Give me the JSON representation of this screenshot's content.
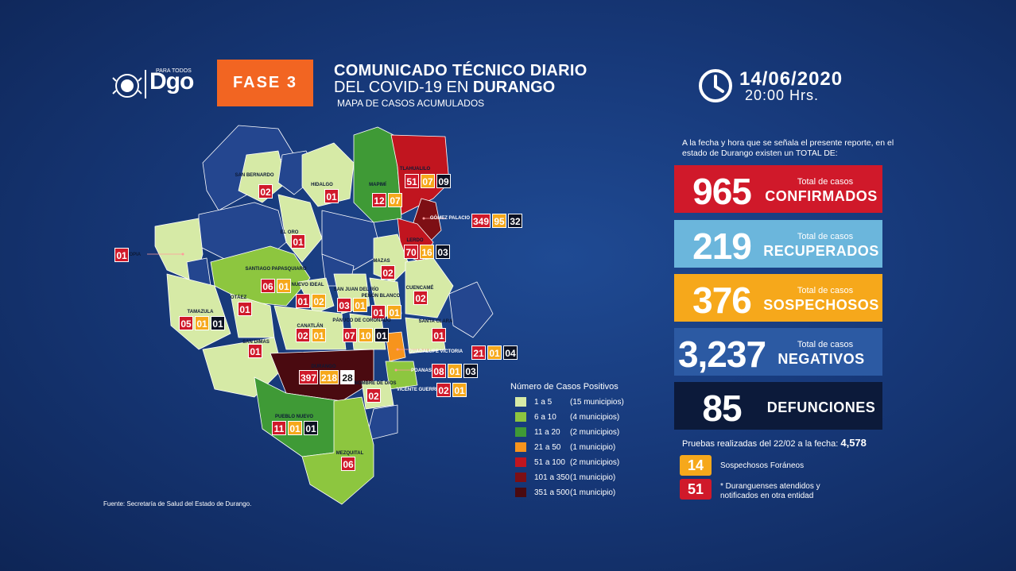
{
  "header": {
    "logo_small": "PARA TODOS",
    "logo_text": "Dgo",
    "phase": "FASE 3",
    "title_line1": "COMUNICADO TÉCNICO DIARIO",
    "title_line2_prefix": "DEL COVID-19 EN ",
    "title_line2_bold": "DURANGO",
    "subtitle": "MAPA DE CASOS ACUMULADOS",
    "date": "14/06/2020",
    "time": "20:00 Hrs."
  },
  "summary": {
    "intro": "A la fecha y hora que se señala el presente reporte, en el estado de Durango existen un TOTAL DE:",
    "stats": [
      {
        "value": "965",
        "sub": "Total de casos",
        "label": "CONFIRMADOS",
        "color": "#d0192a"
      },
      {
        "value": "219",
        "sub": "Total de casos",
        "label": "RECUPERADOS",
        "color": "#6bb6dc"
      },
      {
        "value": "376",
        "sub": "Total de casos",
        "label": "SOSPECHOSOS",
        "color": "#f6a81b"
      },
      {
        "value": "3,237",
        "sub": "Total de casos",
        "label": "NEGATIVOS",
        "color": "#2c5aa3"
      },
      {
        "value": "85",
        "sub": "",
        "label": "DEFUNCIONES",
        "color": "#0c1a3a"
      }
    ],
    "pruebas_label": "Pruebas realizadas del 22/02 a la fecha: ",
    "pruebas_value": "4,578",
    "foraneos_value": "14",
    "foraneos_label": "Sospechosos Foráneos",
    "otra_value": "51",
    "otra_label": "* Duranguenses atendidos y notificados en otra entidad"
  },
  "legend": {
    "title": "Número de Casos Positivos",
    "items": [
      {
        "range": "1 a 5",
        "count": "(15 municipios)",
        "color": "#d6eaa6"
      },
      {
        "range": "6 a 10",
        "count": "(4 municipios)",
        "color": "#8dc63f"
      },
      {
        "range": "11 a 20",
        "count": "(2 municipios)",
        "color": "#3f9a36"
      },
      {
        "range": "21 a 50",
        "count": "(1 municipio)",
        "color": "#f7941d"
      },
      {
        "range": "51 a 100",
        "count": "(2 municipios)",
        "color": "#c1151f"
      },
      {
        "range": "101 a 350",
        "count": "(1 municipio)",
        "color": "#7d0f14"
      },
      {
        "range": "351 a 500",
        "count": "(1 municipio)",
        "color": "#4a0a10"
      }
    ]
  },
  "source": "Fuente: Secretaría de Salud del Estado de Durango.",
  "map": {
    "municipios": [
      {
        "name": "SAN BERNARDO",
        "values": [
          "02"
        ]
      },
      {
        "name": "HIDALGO",
        "values": [
          "01"
        ]
      },
      {
        "name": "TLAHUALILO",
        "values": [
          "51",
          "07",
          "09"
        ]
      },
      {
        "name": "MAPIMÍ",
        "values": [
          "12",
          "07"
        ]
      },
      {
        "name": "GÓMEZ PALACIO",
        "values": [
          "349",
          "95",
          "32"
        ]
      },
      {
        "name": "TOPIA",
        "values": [
          "01"
        ]
      },
      {
        "name": "EL ORO",
        "values": [
          "01"
        ]
      },
      {
        "name": "LERDO",
        "values": [
          "70",
          "16",
          "03"
        ]
      },
      {
        "name": "MAZAS",
        "values": [
          "02"
        ]
      },
      {
        "name": "SANTIAGO PAPASQUIARO",
        "values": [
          "06",
          "01"
        ]
      },
      {
        "name": "NUEVO IDEAL",
        "values": [
          "01",
          "02"
        ]
      },
      {
        "name": "SAN JUAN DEL RÍO",
        "values": [
          "03",
          "01"
        ]
      },
      {
        "name": "PEÑÓN BLANCO",
        "values": [
          "01",
          "01"
        ]
      },
      {
        "name": "CUENCAMÉ",
        "values": [
          "02"
        ]
      },
      {
        "name": "OTÁEZ",
        "values": [
          "01"
        ]
      },
      {
        "name": "TAMAZULA",
        "values": [
          "05",
          "01",
          "01"
        ]
      },
      {
        "name": "PÁNUCO DE CORONADO",
        "values": [
          "07",
          "10",
          "01"
        ]
      },
      {
        "name": "CANATLÁN",
        "values": [
          "02",
          "01"
        ]
      },
      {
        "name": "SANTA CLARA",
        "values": [
          "01"
        ]
      },
      {
        "name": "GUADALUPE VICTORIA",
        "values": [
          "21",
          "01",
          "04"
        ]
      },
      {
        "name": "SAN DIMAS",
        "values": [
          "01"
        ]
      },
      {
        "name": "DURANGO",
        "values": [
          "397",
          "218",
          "28"
        ]
      },
      {
        "name": "POANAS",
        "values": [
          "08",
          "01",
          "03"
        ]
      },
      {
        "name": "NOMBRE DE DIOS",
        "values": [
          "02"
        ]
      },
      {
        "name": "VICENTE GUERRERO",
        "values": [
          "02",
          "01"
        ]
      },
      {
        "name": "PUEBLO NUEVO",
        "values": [
          "11",
          "01",
          "01"
        ]
      },
      {
        "name": "MEZQUITAL",
        "values": [
          "06"
        ]
      }
    ]
  }
}
